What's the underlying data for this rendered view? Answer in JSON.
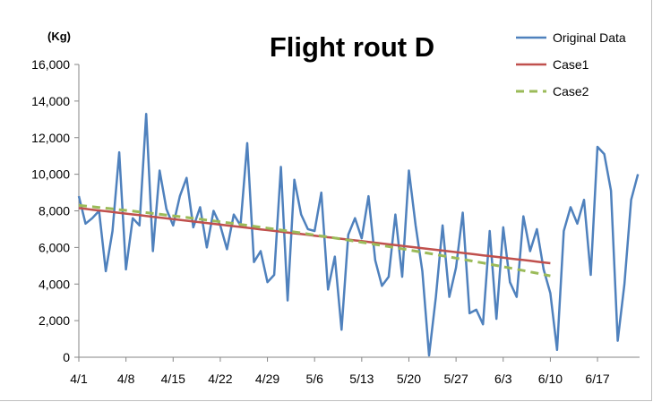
{
  "chart_data": {
    "type": "line",
    "title": "Flight rout D",
    "ylabel": "(Kg)",
    "xlabel": "",
    "ylim": [
      0,
      16000
    ],
    "yticks": [
      "0",
      "2,000",
      "4,000",
      "6,000",
      "8,000",
      "10,000",
      "12,000",
      "14,000",
      "16,000"
    ],
    "xtick_labels": [
      "4/1",
      "4/8",
      "4/15",
      "4/22",
      "4/29",
      "5/6",
      "5/13",
      "5/20",
      "5/27",
      "6/3",
      "6/10",
      "6/17"
    ],
    "x_start": "4/1",
    "legend_position": "top-right",
    "grid": false,
    "series": [
      {
        "name": "Original Data",
        "color": "#4f81bd",
        "style": "solid",
        "values": [
          8800,
          7300,
          7600,
          8000,
          4700,
          6900,
          11200,
          4800,
          7600,
          7200,
          13300,
          5800,
          10200,
          8100,
          7200,
          8800,
          9800,
          7100,
          8200,
          6000,
          8000,
          7200,
          5900,
          7800,
          7200,
          11700,
          5200,
          5800,
          4100,
          4500,
          10400,
          3100,
          9700,
          7800,
          7000,
          6900,
          9000,
          3700,
          5500,
          1500,
          6700,
          7600,
          6500,
          8800,
          5300,
          3900,
          4400,
          7800,
          4400,
          10200,
          7200,
          4700,
          100,
          3300,
          7200,
          3300,
          4900,
          7900,
          2400,
          2600,
          1800,
          6900,
          2100,
          7100,
          4100,
          3300,
          7700,
          5800,
          7000,
          4800,
          3500,
          400,
          6900,
          8200,
          7300,
          8600,
          4500,
          11500,
          11100,
          9100,
          900,
          4000,
          8600,
          10000
        ]
      },
      {
        "name": "Case1",
        "color": "#c0504d",
        "style": "solid",
        "values": [
          8150,
          8107,
          8064,
          8021,
          7978,
          7935,
          7892,
          7849,
          7806,
          7763,
          7720,
          7677,
          7634,
          7591,
          7548,
          7505,
          7462,
          7419,
          7376,
          7333,
          7290,
          7247,
          7204,
          7161,
          7118,
          7075,
          7032,
          6989,
          6946,
          6903,
          6860,
          6817,
          6774,
          6731,
          6688,
          6645,
          6602,
          6559,
          6516,
          6473,
          6430,
          6387,
          6344,
          6301,
          6258,
          6215,
          6172,
          6129,
          6086,
          6043,
          6000,
          5957,
          5914,
          5871,
          5828,
          5785,
          5742,
          5699,
          5656,
          5613,
          5570,
          5527,
          5484,
          5441,
          5398,
          5355,
          5312,
          5269,
          5226,
          5183,
          5140
        ]
      },
      {
        "name": "Case2",
        "color": "#9bbb59",
        "style": "dashed",
        "values": [
          8300,
          8262,
          8224,
          8185,
          8146,
          8106,
          8066,
          8025,
          7984,
          7942,
          7900,
          7857,
          7814,
          7770,
          7726,
          7681,
          7636,
          7590,
          7544,
          7497,
          7450,
          7402,
          7354,
          7305,
          7256,
          7206,
          7156,
          7105,
          7054,
          7002,
          6950,
          6897,
          6844,
          6790,
          6736,
          6681,
          6626,
          6570,
          6514,
          6457,
          6400,
          6342,
          6284,
          6225,
          6166,
          6106,
          6046,
          5985,
          5924,
          5862,
          5800,
          5737,
          5674,
          5610,
          5546,
          5481,
          5416,
          5350,
          5284,
          5217,
          5150,
          5082,
          5014,
          4945,
          4876,
          4806,
          4736,
          4665,
          4594,
          4522,
          4450
        ]
      }
    ]
  }
}
